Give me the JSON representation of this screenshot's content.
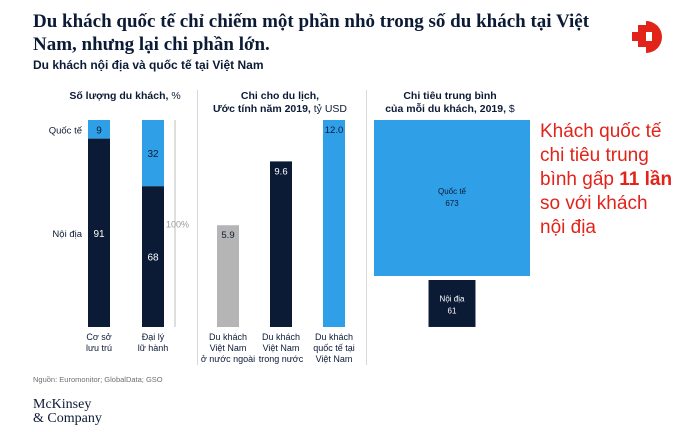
{
  "title": "Du khách quốc tế chỉ chiếm một phần nhỏ trong số du khách tại Việt Nam, nhưng lại chi phần lớn.",
  "subtitle": "Du khách nội địa và quốc tế tại Việt Nam",
  "callout": {
    "line1": "Khách quốc tế",
    "line2": "chi tiêu trung",
    "line3_pre": "bình gấp ",
    "line3_bold": "11 lần",
    "line4": "so với khách",
    "line5": "nội địa"
  },
  "source": "Nguồn: Euromonitor; GlobalData; GSO",
  "brand": {
    "line1": "McKinsey",
    "line2": "& Company"
  },
  "colors": {
    "navy": "#0b1a35",
    "blue": "#2f9fe8",
    "gray": "#b5b5b5",
    "red": "#e2231a"
  },
  "chart_data": [
    {
      "type": "bar",
      "stacked": true,
      "title_bold": "Số lượng du khách,",
      "title_unit": " %",
      "categories": [
        "Cơ sở lưu trú",
        "Đại lý lữ hành"
      ],
      "category_lines": [
        [
          "Cơ sở",
          "lưu trú"
        ],
        [
          "Đại lý",
          "lữ hành"
        ]
      ],
      "series": [
        {
          "name": "Quốc tế",
          "values": [
            9,
            32
          ],
          "color": "#2f9fe8"
        },
        {
          "name": "Nội địa",
          "values": [
            91,
            68
          ],
          "color": "#0b1a35"
        }
      ],
      "total_label": "100%",
      "ylim": [
        0,
        100
      ]
    },
    {
      "type": "bar",
      "title_lines": [
        "Chi cho du lịch,"
      ],
      "title_bold2": "Ước tính năm 2019,",
      "title_unit": " tỷ USD",
      "categories": [
        "Du khách Việt Nam ở nước ngoài",
        "Du khách Việt Nam trong nước",
        "Du khách quốc tế tại Việt Nam"
      ],
      "category_lines": [
        [
          "Du khách",
          "Việt Nam",
          "ở nước ngoài"
        ],
        [
          "Du khách",
          "Việt Nam",
          "trong nước"
        ],
        [
          "Du khách",
          "quốc tế tại",
          "Việt Nam"
        ]
      ],
      "values": [
        5.9,
        9.6,
        12.0
      ],
      "value_labels": [
        "5.9",
        "9.6",
        "12.0"
      ],
      "colors": [
        "#b5b5b5",
        "#0b1a35",
        "#2f9fe8"
      ],
      "ylim": [
        0,
        12.0
      ]
    },
    {
      "type": "area",
      "title_lines": [
        "Chi tiêu trung bình"
      ],
      "title_bold2": "của mỗi du khách, 2019,",
      "title_unit": " $",
      "items": [
        {
          "name": "Quốc tế",
          "value": 673,
          "color": "#2f9fe8"
        },
        {
          "name": "Nội địa",
          "value": 61,
          "color": "#0b1a35"
        }
      ]
    }
  ]
}
